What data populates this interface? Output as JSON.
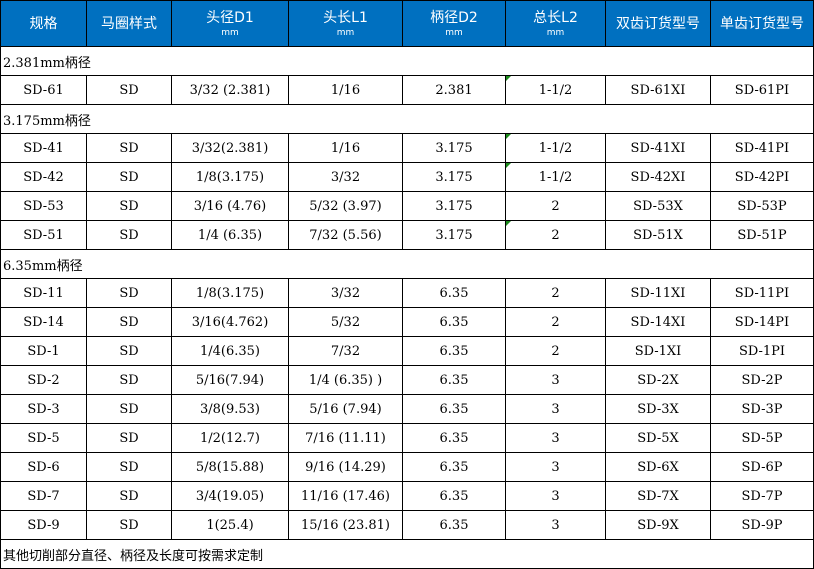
{
  "headers": [
    {
      "label": "规格",
      "unit": ""
    },
    {
      "label": "马圈样式",
      "unit": ""
    },
    {
      "label": "头径D1",
      "unit": "mm"
    },
    {
      "label": "头长L1",
      "unit": "mm"
    },
    {
      "label": "柄径D2",
      "unit": "mm"
    },
    {
      "label": "总长L2",
      "unit": "mm"
    },
    {
      "label": "双齿订货型号",
      "unit": ""
    },
    {
      "label": "单齿订货型号",
      "unit": ""
    }
  ],
  "colors": {
    "header_bg": "#0070C0",
    "header_text": "#FFFFFF",
    "comment_marker": "#1A8A1A"
  },
  "rows": [
    {
      "section": "2.381mm柄径"
    },
    {
      "cells": [
        "SD-61",
        "SD",
        "3/32 (2.381)",
        "1/16",
        "2.381",
        "1-1/2",
        "SD-61XI",
        "SD-61PI"
      ],
      "marker": true
    },
    {
      "section": "3.175mm柄径"
    },
    {
      "cells": [
        "SD-41",
        "SD",
        "3/32(2.381)",
        "1/16",
        "3.175",
        "1-1/2",
        "SD-41XI",
        "SD-41PI"
      ],
      "marker": true
    },
    {
      "cells": [
        "SD-42",
        "SD",
        "1/8(3.175)",
        "3/32",
        "3.175",
        "1-1/2",
        "SD-42XI",
        "SD-42PI"
      ],
      "marker": true
    },
    {
      "cells": [
        "SD-53",
        "SD",
        "3/16 (4.76)",
        "5/32 (3.97)",
        "3.175",
        "2",
        "SD-53X",
        "SD-53P"
      ],
      "marker": false
    },
    {
      "cells": [
        "SD-51",
        "SD",
        "1/4 (6.35)",
        "7/32 (5.56)",
        "3.175",
        "2",
        "SD-51X",
        "SD-51P"
      ],
      "marker": true
    },
    {
      "section": "6.35mm柄径"
    },
    {
      "cells": [
        "SD-11",
        "SD",
        "1/8(3.175)",
        "3/32",
        "6.35",
        "2",
        "SD-11XI",
        "SD-11PI"
      ]
    },
    {
      "cells": [
        "SD-14",
        "SD",
        "3/16(4.762)",
        "5/32",
        "6.35",
        "2",
        "SD-14XI",
        "SD-14PI"
      ]
    },
    {
      "cells": [
        "SD-1",
        "SD",
        "1/4(6.35)",
        "7/32",
        "6.35",
        "2",
        "SD-1XI",
        "SD-1PI"
      ]
    },
    {
      "cells": [
        "SD-2",
        "SD",
        "5/16(7.94)",
        "1/4 (6.35) )",
        "6.35",
        "3",
        "SD-2X",
        "SD-2P"
      ]
    },
    {
      "cells": [
        "SD-3",
        "SD",
        "3/8(9.53)",
        "5/16 (7.94)",
        "6.35",
        "3",
        "SD-3X",
        "SD-3P"
      ]
    },
    {
      "cells": [
        "SD-5",
        "SD",
        "1/2(12.7)",
        "7/16 (11.11)",
        "6.35",
        "3",
        "SD-5X",
        "SD-5P"
      ]
    },
    {
      "cells": [
        "SD-6",
        "SD",
        "5/8(15.88)",
        "9/16 (14.29)",
        "6.35",
        "3",
        "SD-6X",
        "SD-6P"
      ]
    },
    {
      "cells": [
        "SD-7",
        "SD",
        "3/4(19.05)",
        "11/16 (17.46)",
        "6.35",
        "3",
        "SD-7X",
        "SD-7P"
      ]
    },
    {
      "cells": [
        "SD-9",
        "SD",
        "1(25.4)",
        "15/16 (23.81)",
        "6.35",
        "3",
        "SD-9X",
        "SD-9P"
      ]
    }
  ],
  "note": "其他切削部分直径、柄径及长度可按需求定制"
}
